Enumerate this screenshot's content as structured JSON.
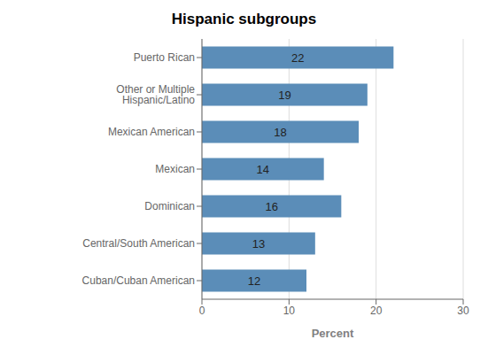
{
  "chart_data": {
    "type": "bar",
    "orientation": "horizontal",
    "title": "Hispanic subgroups",
    "categories": [
      "Cuban/Cuban American",
      "Central/South American",
      "Dominican",
      "Mexican",
      "Mexican American",
      "Other or Multiple Hispanic/Latino",
      "Puerto Rican"
    ],
    "values": [
      12,
      13,
      16,
      14,
      18,
      19,
      22
    ],
    "color": "#5b8db8",
    "xlabel": "Percent",
    "xlim": [
      0,
      30
    ],
    "xticks": [
      0,
      10,
      20,
      30
    ],
    "grid": true,
    "data_labels": true
  }
}
